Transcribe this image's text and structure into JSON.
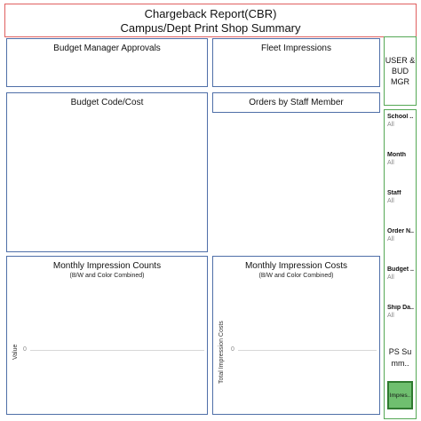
{
  "header": {
    "line1": "Chargeback Report(CBR)",
    "line2": "Campus/Dept Print Shop Summary"
  },
  "panels": {
    "budget_manager_approvals": "Budget Manager Approvals",
    "fleet_impressions": "Fleet Impressions",
    "budget_code_cost": "Budget Code/Cost",
    "orders_by_staff": "Orders by Staff Member",
    "monthly_counts": {
      "title": "Monthly Impression Counts",
      "subtitle": "(B/W and Color Combined)",
      "y_label": "Value",
      "zero": "0"
    },
    "monthly_costs": {
      "title": "Monthly Impression Costs",
      "subtitle": "(B/W and Color Combined)",
      "y_label": "Total Impression Costs",
      "zero": "0"
    }
  },
  "sidebar": {
    "role_button": "USER & BUD MGR",
    "filters": [
      {
        "label": "School ..",
        "value": "All"
      },
      {
        "label": "Month",
        "value": "All"
      },
      {
        "label": "Staff",
        "value": "All"
      },
      {
        "label": "Order N..",
        "value": "All"
      },
      {
        "label": "Budget ..",
        "value": "All"
      },
      {
        "label": "Ship Da..",
        "value": "All"
      }
    ],
    "ps_button": "PS Su mm..",
    "impressions_button": "Impres.."
  }
}
